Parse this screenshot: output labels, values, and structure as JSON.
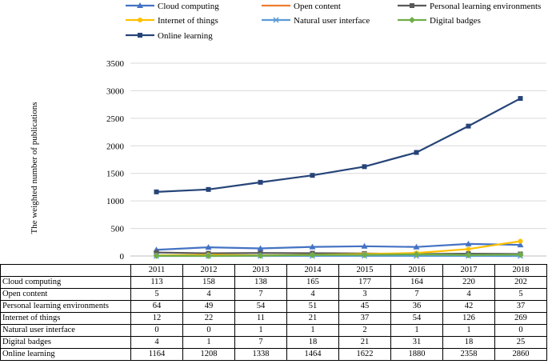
{
  "chart_data": {
    "type": "line",
    "title": "",
    "xlabel": "",
    "ylabel": "The weighted number of publications",
    "ylim": [
      0,
      3500
    ],
    "yticks": [
      0,
      500,
      1000,
      1500,
      2000,
      2500,
      3000,
      3500
    ],
    "categories": [
      "2011",
      "2012",
      "2013",
      "2014",
      "2015",
      "2016",
      "2017",
      "2018"
    ],
    "legend_position": "top",
    "series": [
      {
        "name": "Cloud computing",
        "color": "#4472c4",
        "marker": "triangle",
        "values": [
          113,
          158,
          138,
          165,
          177,
          164,
          220,
          202
        ]
      },
      {
        "name": "Open content",
        "color": "#ed7d31",
        "marker": "none",
        "values": [
          5,
          4,
          7,
          4,
          3,
          7,
          4,
          5
        ]
      },
      {
        "name": "Personal learning environments",
        "color": "#595959",
        "marker": "square",
        "values": [
          64,
          49,
          54,
          51,
          45,
          36,
          42,
          37
        ]
      },
      {
        "name": "Internet of things",
        "color": "#ffc000",
        "marker": "circle",
        "values": [
          12,
          22,
          11,
          21,
          37,
          54,
          126,
          269
        ]
      },
      {
        "name": "Natural user interface",
        "color": "#5b9bd5",
        "marker": "x",
        "values": [
          0,
          0,
          1,
          1,
          2,
          1,
          1,
          0
        ]
      },
      {
        "name": "Digital badges",
        "color": "#70ad47",
        "marker": "diamond",
        "values": [
          4,
          1,
          7,
          18,
          21,
          31,
          18,
          25
        ]
      },
      {
        "name": "Online learning",
        "color": "#264478",
        "marker": "square",
        "values": [
          1164,
          1208,
          1338,
          1464,
          1622,
          1880,
          2358,
          2860
        ]
      }
    ]
  }
}
